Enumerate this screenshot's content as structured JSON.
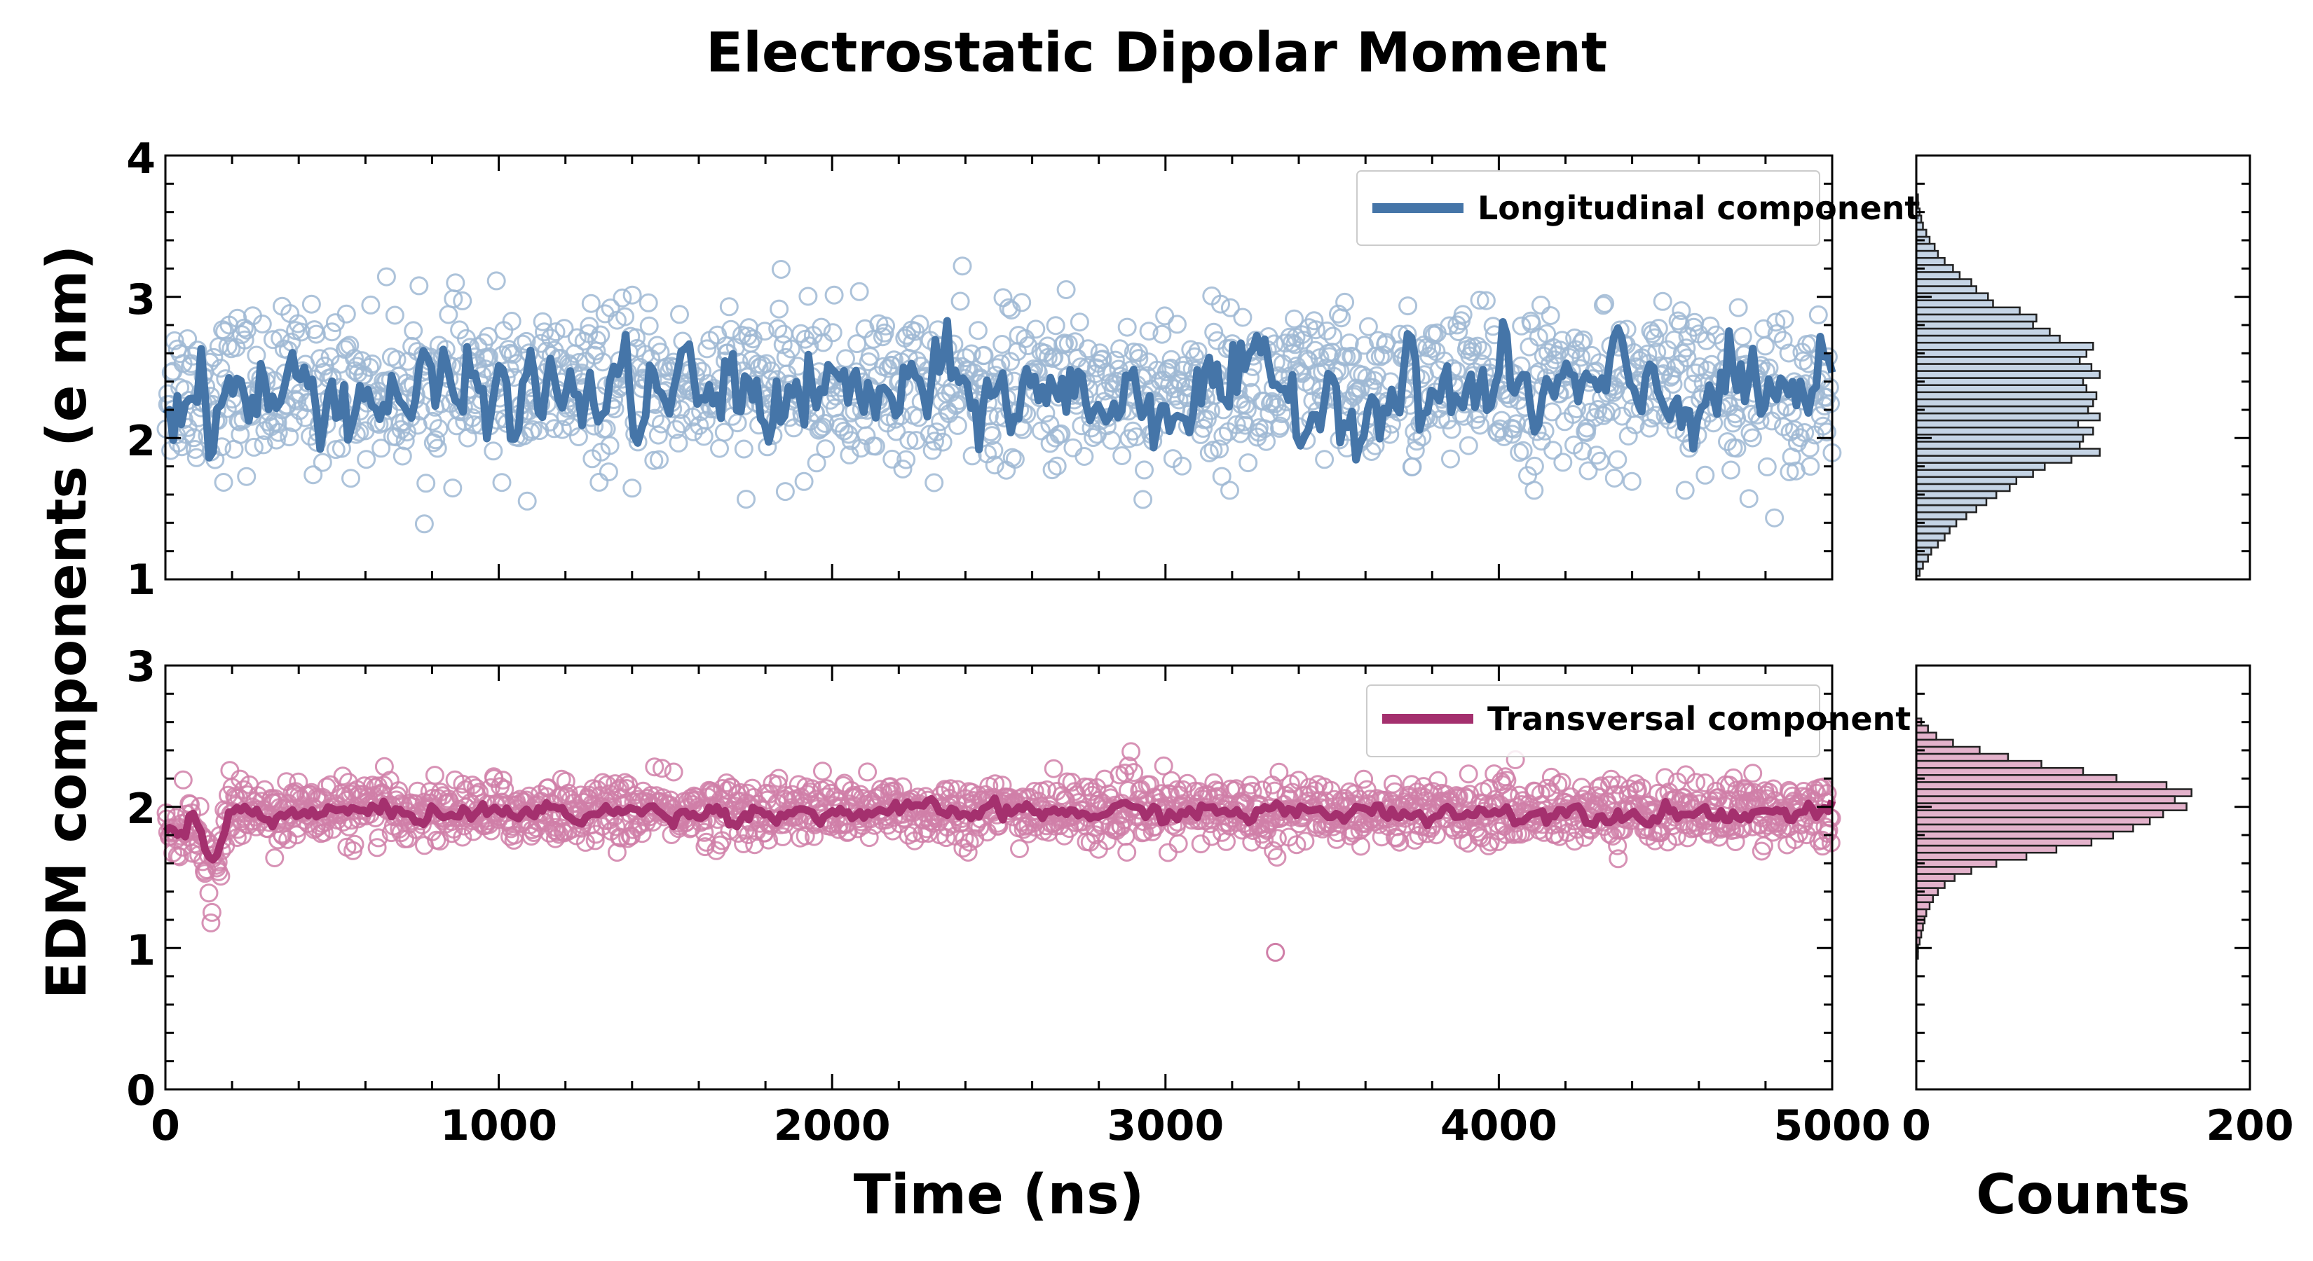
{
  "chart_data": {
    "type": "scatter",
    "title": "Electrostatic Dipolar Moment",
    "xlabel": "Time (ns)",
    "ylabel": "EDM components (e nm)",
    "hist_xlabel": "Counts",
    "xlim": [
      0,
      5000
    ],
    "xticks": [
      "0",
      "1000",
      "2000",
      "3000",
      "4000",
      "5000"
    ],
    "hist_xlim": [
      0,
      200
    ],
    "hist_xticks": [
      "0",
      "200"
    ],
    "colors": {
      "longitudinal": "#4575a8",
      "longitudinal_light": "#9fb8d4",
      "transversal": "#a4306e",
      "transversal_light": "#d07fa8"
    },
    "panels": [
      {
        "id": "longitudinal",
        "ylim": [
          1,
          4
        ],
        "yticks": [
          "1",
          "2",
          "3",
          "4"
        ],
        "legend": "Longitudinal component",
        "legend_position": "top-right",
        "scatter_mean": 2.35,
        "scatter_spread": 0.55,
        "moving_average_mean": 2.3,
        "moving_average_amplitude": 0.3,
        "histogram_bin_centers": [
          1.05,
          1.1,
          1.15,
          1.2,
          1.25,
          1.3,
          1.35,
          1.4,
          1.45,
          1.5,
          1.55,
          1.6,
          1.65,
          1.7,
          1.75,
          1.8,
          1.85,
          1.9,
          1.95,
          2.0,
          2.05,
          2.1,
          2.15,
          2.2,
          2.25,
          2.3,
          2.35,
          2.4,
          2.45,
          2.5,
          2.55,
          2.6,
          2.65,
          2.7,
          2.75,
          2.8,
          2.85,
          2.9,
          2.95,
          3.0,
          3.05,
          3.1,
          3.15,
          3.2,
          3.25,
          3.3,
          3.35,
          3.4,
          3.45,
          3.5,
          3.55,
          3.6,
          3.65,
          3.7
        ],
        "histogram_counts": [
          2,
          4,
          7,
          9,
          13,
          17,
          20,
          24,
          30,
          36,
          42,
          48,
          56,
          60,
          70,
          77,
          93,
          110,
          98,
          100,
          106,
          97,
          110,
          103,
          106,
          108,
          102,
          100,
          110,
          105,
          98,
          102,
          106,
          86,
          80,
          70,
          72,
          62,
          46,
          43,
          36,
          33,
          26,
          22,
          17,
          13,
          11,
          8,
          6,
          4,
          3,
          2,
          1,
          1
        ]
      },
      {
        "id": "transversal",
        "ylim": [
          0,
          3
        ],
        "yticks": [
          "0",
          "1",
          "2",
          "3"
        ],
        "legend": "Transversal component",
        "legend_position": "top-right",
        "scatter_mean": 1.97,
        "scatter_spread": 0.22,
        "moving_average_mean": 1.96,
        "moving_average_amplitude": 0.06,
        "outliers": [
          {
            "x": 3330,
            "y": 0.97
          }
        ],
        "histogram_bin_centers": [
          0.95,
          1.0,
          1.05,
          1.1,
          1.15,
          1.2,
          1.25,
          1.3,
          1.35,
          1.4,
          1.45,
          1.5,
          1.55,
          1.6,
          1.65,
          1.7,
          1.75,
          1.8,
          1.85,
          1.9,
          1.95,
          2.0,
          2.05,
          2.1,
          2.15,
          2.2,
          2.25,
          2.3,
          2.35,
          2.4,
          2.45,
          2.5,
          2.55,
          2.6
        ],
        "histogram_counts": [
          1,
          1,
          2,
          3,
          4,
          5,
          6,
          8,
          10,
          13,
          17,
          23,
          33,
          48,
          66,
          84,
          105,
          118,
          130,
          140,
          148,
          162,
          155,
          165,
          150,
          120,
          100,
          75,
          55,
          38,
          22,
          12,
          7,
          3
        ]
      }
    ]
  }
}
